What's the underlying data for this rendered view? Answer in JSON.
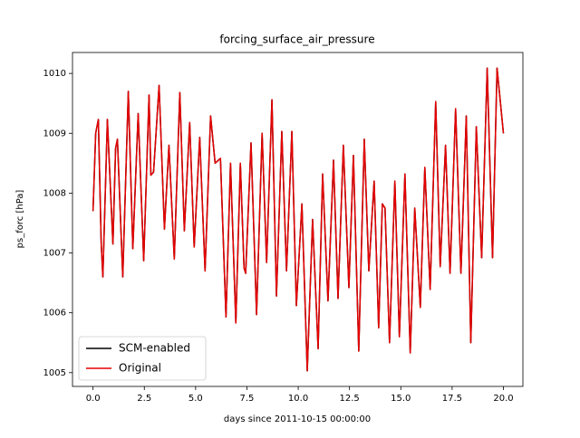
{
  "chart_data": {
    "type": "line",
    "title": "forcing_surface_air_pressure",
    "xlabel": "days since 2011-10-15 00:00:00",
    "ylabel": "ps_forc [hPa]",
    "x": [
      0,
      0.13,
      0.26,
      0.4,
      0.48,
      0.7,
      0.97,
      1.1,
      1.19,
      1.45,
      1.72,
      1.94,
      2.2,
      2.47,
      2.73,
      2.82,
      2.95,
      3.22,
      3.48,
      3.7,
      3.96,
      4.23,
      4.45,
      4.71,
      4.93,
      5.2,
      5.46,
      5.73,
      5.95,
      6.21,
      6.48,
      6.7,
      6.96,
      7.18,
      7.36,
      7.44,
      7.7,
      7.97,
      8.24,
      8.46,
      8.72,
      8.94,
      9.2,
      9.43,
      9.69,
      9.91,
      10.18,
      10.44,
      10.7,
      10.97,
      11.19,
      11.45,
      11.72,
      11.94,
      12.2,
      12.47,
      12.69,
      12.95,
      13.22,
      13.44,
      13.7,
      13.92,
      14.1,
      14.23,
      14.45,
      14.71,
      14.93,
      15.2,
      15.46,
      15.68,
      15.95,
      16.17,
      16.43,
      16.7,
      16.92,
      17.18,
      17.4,
      17.67,
      17.93,
      18.19,
      18.41,
      18.68,
      18.94,
      19.21,
      19.47,
      19.69,
      20
    ],
    "series": [
      {
        "name": "SCM-enabled",
        "color": "#000000",
        "values": [
          1007.7,
          1009.0,
          1009.23,
          1007.15,
          1006.6,
          1009.23,
          1007.15,
          1008.75,
          1008.9,
          1006.6,
          1009.7,
          1007.07,
          1009.33,
          1006.87,
          1009.64,
          1008.3,
          1008.35,
          1009.8,
          1007.4,
          1008.8,
          1006.9,
          1009.68,
          1007.37,
          1009.18,
          1007.1,
          1008.93,
          1006.7,
          1009.29,
          1008.5,
          1008.58,
          1005.93,
          1008.5,
          1005.83,
          1008.5,
          1006.75,
          1006.66,
          1008.84,
          1005.97,
          1009.0,
          1006.84,
          1009.56,
          1006.28,
          1009.03,
          1006.7,
          1009.03,
          1006.12,
          1007.82,
          1005.03,
          1007.56,
          1005.4,
          1008.32,
          1006.2,
          1008.55,
          1006.24,
          1008.8,
          1006.42,
          1008.63,
          1005.36,
          1008.9,
          1006.7,
          1008.2,
          1005.75,
          1007.82,
          1007.75,
          1005.5,
          1008.2,
          1005.6,
          1008.32,
          1005.33,
          1007.75,
          1006.09,
          1008.43,
          1006.39,
          1009.53,
          1006.77,
          1008.8,
          1006.66,
          1009.41,
          1006.66,
          1009.29,
          1005.5,
          1009.11,
          1006.92,
          1010.09,
          1006.92,
          1010.09,
          1009.0
        ]
      },
      {
        "name": "Original",
        "color": "#e50000",
        "values": [
          1007.7,
          1009.0,
          1009.23,
          1007.15,
          1006.6,
          1009.23,
          1007.15,
          1008.75,
          1008.9,
          1006.6,
          1009.7,
          1007.07,
          1009.33,
          1006.87,
          1009.64,
          1008.3,
          1008.35,
          1009.8,
          1007.4,
          1008.8,
          1006.9,
          1009.68,
          1007.37,
          1009.18,
          1007.1,
          1008.93,
          1006.7,
          1009.29,
          1008.5,
          1008.58,
          1005.93,
          1008.5,
          1005.83,
          1008.5,
          1006.75,
          1006.66,
          1008.84,
          1005.97,
          1009.0,
          1006.84,
          1009.56,
          1006.28,
          1009.03,
          1006.7,
          1009.03,
          1006.12,
          1007.82,
          1005.03,
          1007.56,
          1005.4,
          1008.32,
          1006.2,
          1008.55,
          1006.24,
          1008.8,
          1006.42,
          1008.63,
          1005.36,
          1008.9,
          1006.7,
          1008.2,
          1005.75,
          1007.82,
          1007.75,
          1005.5,
          1008.2,
          1005.6,
          1008.32,
          1005.33,
          1007.75,
          1006.09,
          1008.43,
          1006.39,
          1009.53,
          1006.77,
          1008.8,
          1006.66,
          1009.41,
          1006.66,
          1009.29,
          1005.5,
          1009.11,
          1006.92,
          1010.09,
          1006.92,
          1010.09,
          1009.0
        ]
      }
    ],
    "xlim": [
      -1,
      20.95
    ],
    "ylim": [
      1004.77,
      1010.35
    ],
    "xticks": [
      {
        "value": 0,
        "label": "0.0"
      },
      {
        "value": 2.5,
        "label": "2.5"
      },
      {
        "value": 5,
        "label": "5.0"
      },
      {
        "value": 7.5,
        "label": "7.5"
      },
      {
        "value": 10,
        "label": "10.0"
      },
      {
        "value": 12.5,
        "label": "12.5"
      },
      {
        "value": 15,
        "label": "15.0"
      },
      {
        "value": 17.5,
        "label": "17.5"
      },
      {
        "value": 20,
        "label": "20.0"
      }
    ],
    "yticks": [
      1005,
      1006,
      1007,
      1008,
      1009,
      1010
    ],
    "legend": "lower left"
  }
}
